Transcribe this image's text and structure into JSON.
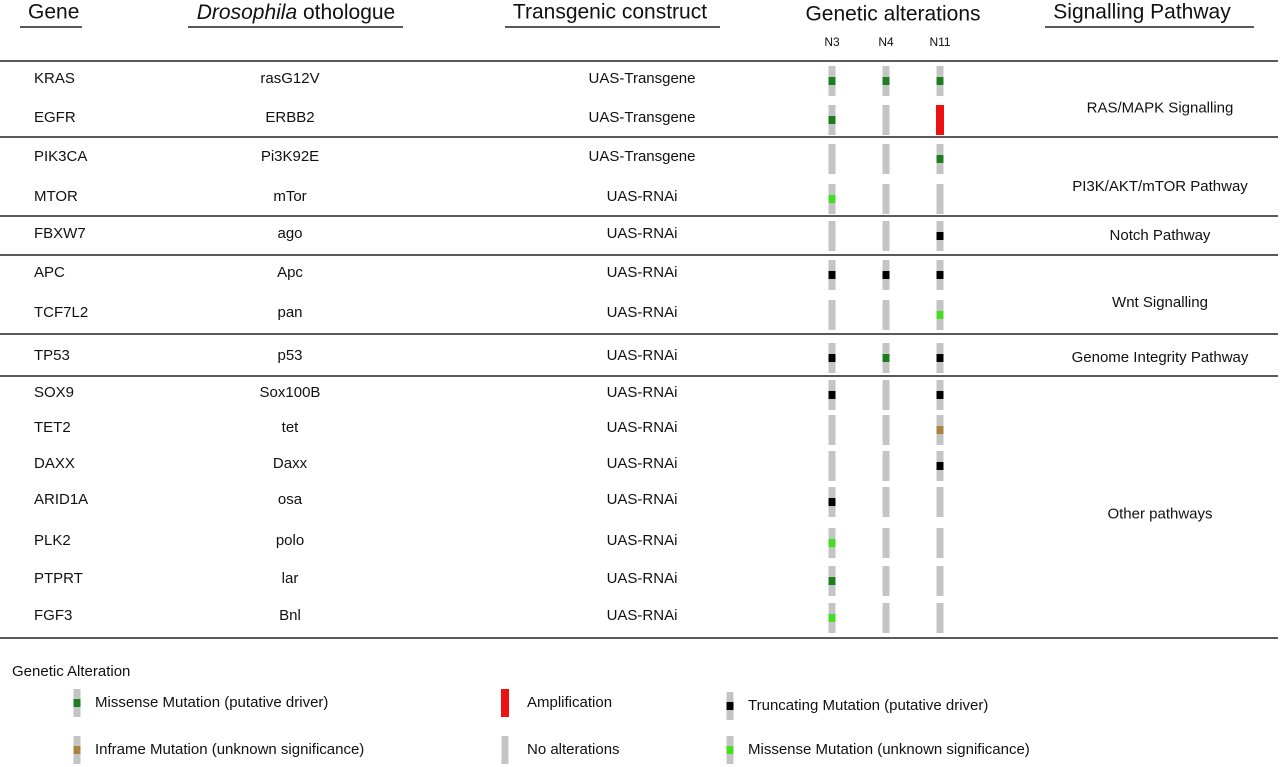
{
  "header": {
    "gene": "Gene",
    "ortholog_italic": "Drosophila",
    "ortholog_rest": " othologue",
    "construct": "Transgenic construct",
    "alterations": "Genetic alterations",
    "pathway": "Signalling Pathway",
    "samples": [
      "N3",
      "N4",
      "N11"
    ]
  },
  "groups": [
    {
      "pathway": "RAS/MAPK Signalling",
      "rows": [
        {
          "gene": "KRAS",
          "ortholog": "rasG12V",
          "construct": "UAS-Transgene",
          "alterations": [
            "#1e7d1e",
            "#1e7d1e",
            "#1e7d1e"
          ]
        },
        {
          "gene": "EGFR",
          "ortholog": "ERBB2",
          "construct": "UAS-Transgene",
          "alterations": [
            "#1e7d1e",
            "#c4c4c4",
            "#ee1111"
          ]
        }
      ]
    },
    {
      "pathway": "PI3K/AKT/mTOR Pathway",
      "rows": [
        {
          "gene": "PIK3CA",
          "ortholog": "Pi3K92E",
          "construct": "UAS-Transgene",
          "alterations": [
            "#c4c4c4",
            "#c4c4c4",
            "#1e7d1e"
          ]
        },
        {
          "gene": "MTOR",
          "ortholog": "mTor",
          "construct": "UAS-RNAi",
          "alterations": [
            "#44dd22",
            "#c4c4c4",
            "#c4c4c4"
          ]
        }
      ]
    },
    {
      "pathway": "Notch Pathway",
      "rows": [
        {
          "gene": "FBXW7",
          "ortholog": "ago",
          "construct": "UAS-RNAi",
          "alterations": [
            "#c4c4c4",
            "#c4c4c4",
            "#000000"
          ]
        }
      ]
    },
    {
      "pathway": "Wnt Signalling",
      "rows": [
        {
          "gene": "APC",
          "ortholog": "Apc",
          "construct": "UAS-RNAi",
          "alterations": [
            "#000000",
            "#000000",
            "#000000"
          ]
        },
        {
          "gene": "TCF7L2",
          "ortholog": "pan",
          "construct": "UAS-RNAi",
          "alterations": [
            "#c4c4c4",
            "#c4c4c4",
            "#44dd22"
          ]
        }
      ]
    },
    {
      "pathway": "Genome Integrity Pathway",
      "rows": [
        {
          "gene": "TP53",
          "ortholog": "p53",
          "construct": "UAS-RNAi",
          "alterations": [
            "#000000",
            "#1e7d1e",
            "#000000"
          ]
        }
      ]
    },
    {
      "pathway": "Other pathways",
      "rows": [
        {
          "gene": "SOX9",
          "ortholog": "Sox100B",
          "construct": "UAS-RNAi",
          "alterations": [
            "#000000",
            "#c4c4c4",
            "#000000"
          ]
        },
        {
          "gene": "TET2",
          "ortholog": "tet",
          "construct": "UAS-RNAi",
          "alterations": [
            "#c4c4c4",
            "#c4c4c4",
            "#a8843c"
          ]
        },
        {
          "gene": "DAXX",
          "ortholog": "Daxx",
          "construct": "UAS-RNAi",
          "alterations": [
            "#c4c4c4",
            "#c4c4c4",
            "#000000"
          ]
        },
        {
          "gene": "ARID1A",
          "ortholog": "osa",
          "construct": "UAS-RNAi",
          "alterations": [
            "#000000",
            "#c4c4c4",
            "#c4c4c4"
          ]
        },
        {
          "gene": "PLK2",
          "ortholog": "polo",
          "construct": "UAS-RNAi",
          "alterations": [
            "#44dd22",
            "#c4c4c4",
            "#c4c4c4"
          ]
        },
        {
          "gene": "PTPRT",
          "ortholog": "lar",
          "construct": "UAS-RNAi",
          "alterations": [
            "#1e7d1e",
            "#c4c4c4",
            "#c4c4c4"
          ]
        },
        {
          "gene": "FGF3",
          "ortholog": "Bnl",
          "construct": "UAS-RNAi",
          "alterations": [
            "#44dd22",
            "#c4c4c4",
            "#c4c4c4"
          ]
        }
      ]
    }
  ],
  "legend": {
    "title": "Genetic Alteration",
    "items": [
      {
        "label": "Missense Mutation (putative driver)",
        "color": "#1e7d1e"
      },
      {
        "label": "Amplification",
        "color": "#ee1111"
      },
      {
        "label": "Truncating Mutation (putative driver)",
        "color": "#000000"
      },
      {
        "label": "Inframe Mutation (unknown significance)",
        "color": "#a8843c"
      },
      {
        "label": "No alterations",
        "color": "#c4c4c4"
      },
      {
        "label": "Missense Mutation (unknown significance)",
        "color": "#44dd22"
      }
    ]
  }
}
